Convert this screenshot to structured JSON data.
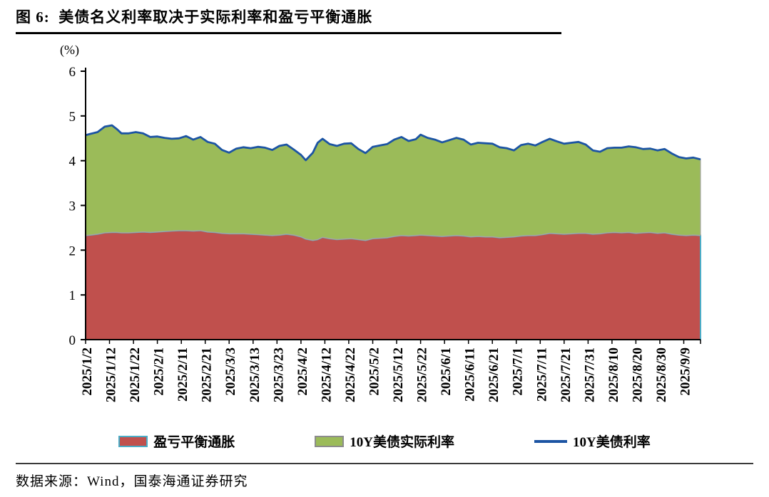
{
  "header": {
    "title": "图 6:  美债名义利率取决于实际利率和盈亏平衡通胀"
  },
  "chart_data": {
    "type": "area",
    "stacked": true,
    "title": "美债名义利率取决于实际利率和盈亏平衡通胀",
    "unit_label": "(%)",
    "xlabel": "",
    "ylabel": "",
    "ylim": [
      0,
      6
    ],
    "grid": false,
    "legend_position": "bottom",
    "y_ticks": [
      0,
      1,
      2,
      3,
      4,
      5,
      6
    ],
    "x_ticks": [
      "2025/1/2",
      "2025/1/12",
      "2025/1/22",
      "2025/2/1",
      "2025/2/11",
      "2025/2/21",
      "2025/3/3",
      "2025/3/13",
      "2025/3/23",
      "2025/4/2",
      "2025/4/12",
      "2025/4/22",
      "2025/5/2",
      "2025/5/12",
      "2025/5/22",
      "2025/6/1",
      "2025/6/11",
      "2025/6/21",
      "2025/7/1",
      "2025/7/11",
      "2025/7/21",
      "2025/7/31",
      "2025/8/10",
      "2025/8/20",
      "2025/8/30",
      "2025/9/9"
    ],
    "x": [
      "2025/1/2",
      "2025/1/4",
      "2025/1/7",
      "2025/1/10",
      "2025/1/13",
      "2025/1/15",
      "2025/1/17",
      "2025/1/20",
      "2025/1/23",
      "2025/1/26",
      "2025/1/29",
      "2025/2/1",
      "2025/2/4",
      "2025/2/7",
      "2025/2/10",
      "2025/2/13",
      "2025/2/16",
      "2025/2/19",
      "2025/2/22",
      "2025/2/25",
      "2025/2/28",
      "2025/3/3",
      "2025/3/6",
      "2025/3/9",
      "2025/3/12",
      "2025/3/15",
      "2025/3/18",
      "2025/3/21",
      "2025/3/24",
      "2025/3/27",
      "2025/3/30",
      "2025/4/2",
      "2025/4/4",
      "2025/4/7",
      "2025/4/9",
      "2025/4/11",
      "2025/4/14",
      "2025/4/17",
      "2025/4/20",
      "2025/4/23",
      "2025/4/26",
      "2025/4/29",
      "2025/5/2",
      "2025/5/5",
      "2025/5/8",
      "2025/5/11",
      "2025/5/14",
      "2025/5/17",
      "2025/5/20",
      "2025/5/22",
      "2025/5/25",
      "2025/5/28",
      "2025/5/31",
      "2025/6/3",
      "2025/6/6",
      "2025/6/9",
      "2025/6/12",
      "2025/6/15",
      "2025/6/18",
      "2025/6/21",
      "2025/6/24",
      "2025/6/27",
      "2025/6/30",
      "2025/7/3",
      "2025/7/6",
      "2025/7/9",
      "2025/7/12",
      "2025/7/15",
      "2025/7/18",
      "2025/7/21",
      "2025/7/24",
      "2025/7/27",
      "2025/7/30",
      "2025/8/2",
      "2025/8/5",
      "2025/8/8",
      "2025/8/11",
      "2025/8/14",
      "2025/8/17",
      "2025/8/20",
      "2025/8/23",
      "2025/8/26",
      "2025/8/29",
      "2025/9/1",
      "2025/9/4",
      "2025/9/7",
      "2025/9/10",
      "2025/9/13",
      "2025/9/16"
    ],
    "series": [
      {
        "name": "盈亏平衡通胀",
        "type": "area",
        "fill": "#C0504D",
        "edge": "#4BACC6",
        "values": [
          2.33,
          2.34,
          2.36,
          2.39,
          2.4,
          2.4,
          2.39,
          2.39,
          2.4,
          2.41,
          2.4,
          2.41,
          2.42,
          2.43,
          2.44,
          2.44,
          2.43,
          2.44,
          2.41,
          2.4,
          2.38,
          2.37,
          2.37,
          2.37,
          2.36,
          2.35,
          2.34,
          2.33,
          2.34,
          2.36,
          2.34,
          2.3,
          2.25,
          2.22,
          2.24,
          2.29,
          2.26,
          2.24,
          2.25,
          2.26,
          2.24,
          2.22,
          2.26,
          2.27,
          2.28,
          2.31,
          2.33,
          2.32,
          2.33,
          2.34,
          2.33,
          2.32,
          2.31,
          2.32,
          2.33,
          2.32,
          2.3,
          2.31,
          2.3,
          2.3,
          2.28,
          2.29,
          2.3,
          2.32,
          2.33,
          2.33,
          2.35,
          2.38,
          2.37,
          2.36,
          2.37,
          2.38,
          2.38,
          2.36,
          2.37,
          2.39,
          2.4,
          2.39,
          2.4,
          2.38,
          2.39,
          2.4,
          2.38,
          2.39,
          2.36,
          2.34,
          2.33,
          2.34,
          2.33
        ]
      },
      {
        "name": "10Y美债实际利率",
        "type": "area",
        "fill": "#9BBB59",
        "edge": "#A6A6A6",
        "values": [
          2.24,
          2.26,
          2.28,
          2.37,
          2.39,
          2.31,
          2.22,
          2.22,
          2.24,
          2.2,
          2.13,
          2.13,
          2.09,
          2.06,
          2.06,
          2.11,
          2.04,
          2.09,
          2.01,
          1.98,
          1.86,
          1.81,
          1.9,
          1.93,
          1.92,
          1.96,
          1.95,
          1.91,
          1.99,
          2.0,
          1.91,
          1.83,
          1.76,
          1.96,
          2.16,
          2.2,
          2.11,
          2.09,
          2.13,
          2.13,
          2.02,
          1.95,
          2.05,
          2.07,
          2.09,
          2.16,
          2.2,
          2.12,
          2.15,
          2.24,
          2.18,
          2.15,
          2.1,
          2.14,
          2.18,
          2.15,
          2.06,
          2.09,
          2.09,
          2.08,
          2.02,
          1.99,
          1.93,
          2.03,
          2.05,
          2.01,
          2.07,
          2.11,
          2.06,
          2.02,
          2.03,
          2.04,
          1.98,
          1.87,
          1.83,
          1.89,
          1.89,
          1.9,
          1.92,
          1.92,
          1.87,
          1.87,
          1.85,
          1.87,
          1.8,
          1.74,
          1.72,
          1.73,
          1.7
        ]
      },
      {
        "name": "10Y美债利率",
        "type": "line",
        "color": "#1C54A3",
        "values": [
          4.57,
          4.6,
          4.64,
          4.76,
          4.79,
          4.71,
          4.61,
          4.61,
          4.64,
          4.61,
          4.53,
          4.54,
          4.51,
          4.49,
          4.5,
          4.55,
          4.47,
          4.53,
          4.42,
          4.38,
          4.24,
          4.18,
          4.27,
          4.3,
          4.28,
          4.31,
          4.29,
          4.24,
          4.33,
          4.36,
          4.25,
          4.13,
          4.01,
          4.18,
          4.4,
          4.49,
          4.37,
          4.33,
          4.38,
          4.39,
          4.26,
          4.17,
          4.31,
          4.34,
          4.37,
          4.47,
          4.53,
          4.44,
          4.48,
          4.58,
          4.51,
          4.47,
          4.41,
          4.46,
          4.51,
          4.47,
          4.36,
          4.4,
          4.39,
          4.38,
          4.3,
          4.28,
          4.23,
          4.35,
          4.38,
          4.34,
          4.42,
          4.49,
          4.43,
          4.38,
          4.4,
          4.42,
          4.36,
          4.23,
          4.2,
          4.28,
          4.29,
          4.29,
          4.32,
          4.3,
          4.26,
          4.27,
          4.23,
          4.26,
          4.16,
          4.08,
          4.05,
          4.07,
          4.03
        ]
      }
    ]
  },
  "footer": {
    "source": "数据来源：Wind，国泰海通证券研究"
  }
}
